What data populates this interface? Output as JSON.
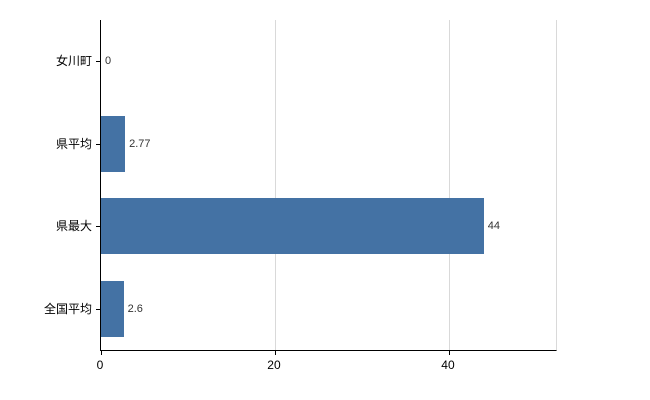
{
  "chart_data": {
    "type": "bar",
    "orientation": "horizontal",
    "title": "",
    "categories": [
      "女川町",
      "県平均",
      "県最大",
      "全国平均"
    ],
    "values": [
      0,
      2.77,
      44,
      2.6
    ],
    "value_labels": [
      "0",
      "2.77",
      "44",
      "2.6"
    ],
    "xticks": [
      0,
      20,
      40
    ],
    "xtick_labels": [
      "0",
      "20",
      "40"
    ],
    "xlim": [
      0,
      52.3
    ],
    "xlabel": "",
    "ylabel": "",
    "grid": true,
    "legend": false,
    "bar_color": "#4472a4",
    "grid_color": "#d9d9d9",
    "axis_color": "#000000"
  }
}
